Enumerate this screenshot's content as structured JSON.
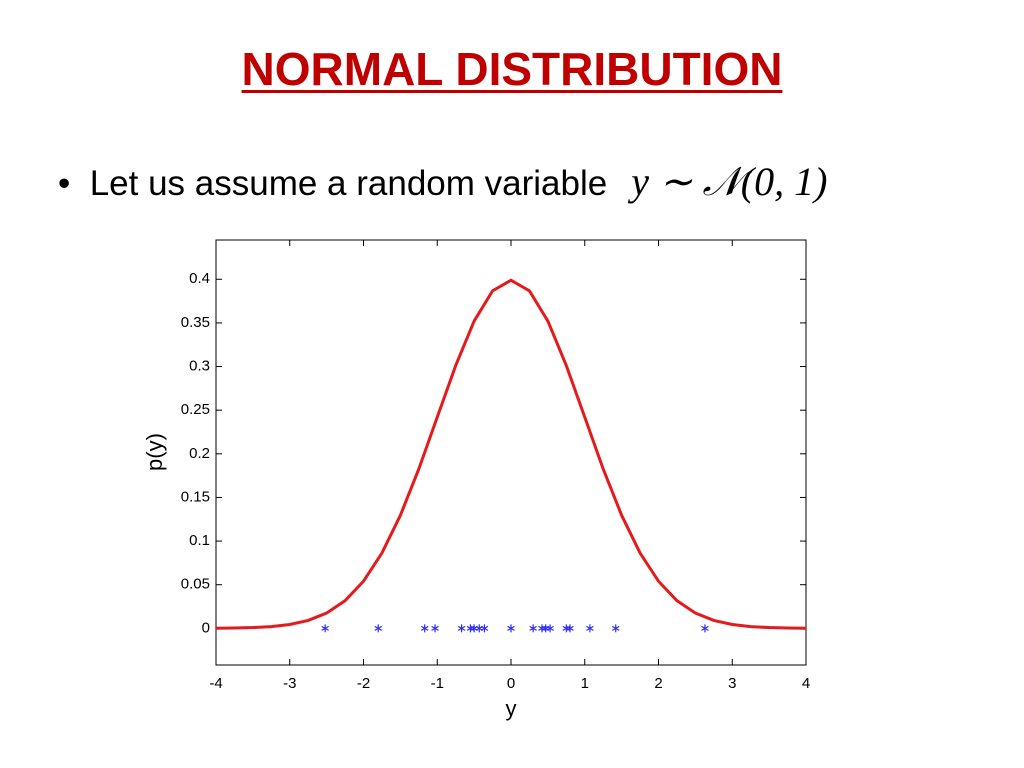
{
  "slide": {
    "title": "NORMAL DISTRIBUTION",
    "bullet": "Let us assume a random variable",
    "math": "y ∼ 𝒩(0, 1)"
  },
  "chart_data": {
    "type": "line",
    "xlabel": "y",
    "ylabel": "p(y)",
    "xlim": [
      -4,
      4
    ],
    "xticks": [
      -4,
      -3,
      -2,
      -1,
      0,
      1,
      2,
      3,
      4
    ],
    "ylim": [
      -0.042,
      0.445
    ],
    "yticks": [
      0,
      0.05,
      0.1,
      0.15,
      0.2,
      0.25,
      0.3,
      0.35,
      0.4
    ],
    "grid": false,
    "series": [
      {
        "type": "line",
        "color": "#e41a1c",
        "x": [
          -4,
          -3.75,
          -3.5,
          -3.25,
          -3,
          -2.75,
          -2.5,
          -2.25,
          -2,
          -1.75,
          -1.5,
          -1.25,
          -1,
          -0.75,
          -0.5,
          -0.25,
          0,
          0.25,
          0.5,
          0.75,
          1,
          1.25,
          1.5,
          1.75,
          2,
          2.25,
          2.5,
          2.75,
          3,
          3.25,
          3.5,
          3.75,
          4
        ],
        "values": [
          0.0001,
          0.0004,
          0.0009,
          0.002,
          0.0044,
          0.0091,
          0.0175,
          0.0317,
          0.054,
          0.0863,
          0.1295,
          0.1826,
          0.242,
          0.3011,
          0.3521,
          0.3867,
          0.3989,
          0.3867,
          0.3521,
          0.3011,
          0.242,
          0.1826,
          0.1295,
          0.0863,
          0.054,
          0.0317,
          0.0175,
          0.0091,
          0.0044,
          0.002,
          0.0009,
          0.0004,
          0.0001
        ]
      },
      {
        "type": "scatter",
        "color": "#2b2bff",
        "x": [
          -2.52,
          -1.8,
          -1.17,
          -1.03,
          -0.67,
          -0.55,
          -0.5,
          -0.43,
          -0.36,
          0.0,
          0.3,
          0.42,
          0.47,
          0.53,
          0.75,
          0.8,
          1.07,
          1.42,
          2.63
        ],
        "values": [
          0,
          0,
          0,
          0,
          0,
          0,
          0,
          0,
          0,
          0,
          0,
          0,
          0,
          0,
          0,
          0,
          0,
          0,
          0
        ]
      }
    ]
  }
}
